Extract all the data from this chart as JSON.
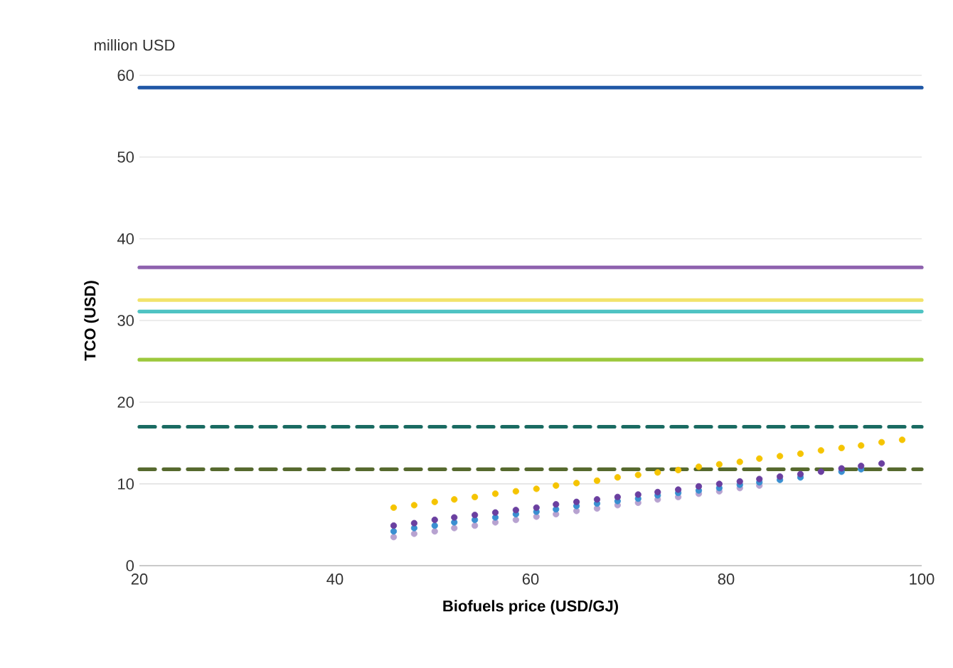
{
  "chart_data": {
    "type": "line",
    "xlabel": "Biofuels price (USD/GJ)",
    "ylabel": "TCO (USD)",
    "annotations": [
      "million USD"
    ],
    "xlim": [
      20,
      100
    ],
    "xticks": [
      20,
      40,
      60,
      80,
      100
    ],
    "ylim": [
      0,
      60
    ],
    "yticks": [
      0,
      10,
      20,
      30,
      40,
      50,
      60
    ],
    "grid": "y",
    "series": [
      {
        "color": "#1f57a6",
        "x": [
          20,
          100
        ],
        "values": [
          58.5,
          58.5
        ]
      },
      {
        "color": "#8e62ae",
        "x": [
          20,
          100
        ],
        "values": [
          36.5,
          36.5
        ]
      },
      {
        "color": "#f2e36b",
        "x": [
          20,
          100
        ],
        "values": [
          32.5,
          32.5
        ]
      },
      {
        "color": "#4fc3c3",
        "x": [
          20,
          100
        ],
        "values": [
          31.1,
          31.1
        ]
      },
      {
        "color": "#9cc83c",
        "x": [
          20,
          100
        ],
        "values": [
          25.2,
          25.2
        ]
      },
      {
        "color": "#1a6b62",
        "line_style": "dashed",
        "x": [
          20,
          100
        ],
        "values": [
          17.0,
          17.0
        ]
      },
      {
        "color": "#56692e",
        "line_style": "dashed",
        "x": [
          20,
          100
        ],
        "values": [
          11.8,
          11.8
        ]
      },
      {
        "type": "scatter",
        "marker": "circle",
        "color": "#b7a2d0",
        "x": [
          46,
          48.1,
          50.2,
          52.2,
          54.3,
          56.4,
          58.5,
          60.6,
          62.6,
          64.7,
          66.8,
          68.9,
          71,
          73,
          75.1,
          77.2,
          79.3,
          81.4,
          83.4
        ],
        "values": [
          3.5,
          3.9,
          4.2,
          4.6,
          4.9,
          5.3,
          5.6,
          6.0,
          6.3,
          6.7,
          7.0,
          7.4,
          7.7,
          8.1,
          8.4,
          8.8,
          9.1,
          9.5,
          9.8
        ]
      },
      {
        "type": "scatter",
        "marker": "circle",
        "color": "#3a8fd1",
        "x": [
          46,
          48.1,
          50.2,
          52.2,
          54.3,
          56.4,
          58.5,
          60.6,
          62.6,
          64.7,
          66.8,
          68.9,
          71,
          73,
          75.1,
          77.2,
          79.3,
          81.4,
          83.4,
          85.5,
          87.6,
          89.7,
          91.8,
          93.8
        ],
        "values": [
          4.2,
          4.6,
          4.9,
          5.3,
          5.6,
          5.9,
          6.3,
          6.6,
          6.9,
          7.3,
          7.6,
          7.9,
          8.2,
          8.6,
          8.9,
          9.2,
          9.5,
          9.9,
          10.2,
          10.5,
          10.8,
          null,
          11.5,
          11.8
        ]
      },
      {
        "type": "scatter",
        "marker": "circle",
        "color": "#6a3fa0",
        "x": [
          46,
          48.1,
          50.2,
          52.2,
          54.3,
          56.4,
          58.5,
          60.6,
          62.6,
          64.7,
          66.8,
          68.9,
          71,
          73,
          75.1,
          77.2,
          79.3,
          81.4,
          83.4,
          85.5,
          87.6,
          89.7,
          91.8,
          93.8,
          95.9
        ],
        "values": [
          4.9,
          5.2,
          5.6,
          5.9,
          6.2,
          6.5,
          6.8,
          7.1,
          7.5,
          7.8,
          8.1,
          8.4,
          8.7,
          9.0,
          9.3,
          9.7,
          10.0,
          10.3,
          10.6,
          10.9,
          11.2,
          11.5,
          11.9,
          12.2,
          12.5
        ]
      },
      {
        "type": "scatter",
        "marker": "circle",
        "color": "#f5c400",
        "x": [
          46,
          48.1,
          50.2,
          52.2,
          54.3,
          56.4,
          58.5,
          60.6,
          62.6,
          64.7,
          66.8,
          68.9,
          71,
          73,
          75.1,
          77.2,
          79.3,
          81.4,
          83.4,
          85.5,
          87.6,
          89.7,
          91.8,
          93.8,
          95.9,
          98
        ],
        "values": [
          7.1,
          7.4,
          7.8,
          8.1,
          8.4,
          8.8,
          9.1,
          9.4,
          9.8,
          10.1,
          10.4,
          10.8,
          11.1,
          11.4,
          11.7,
          12.1,
          12.4,
          12.7,
          13.1,
          13.4,
          13.7,
          14.1,
          14.4,
          14.7,
          15.1,
          15.4
        ]
      }
    ]
  }
}
